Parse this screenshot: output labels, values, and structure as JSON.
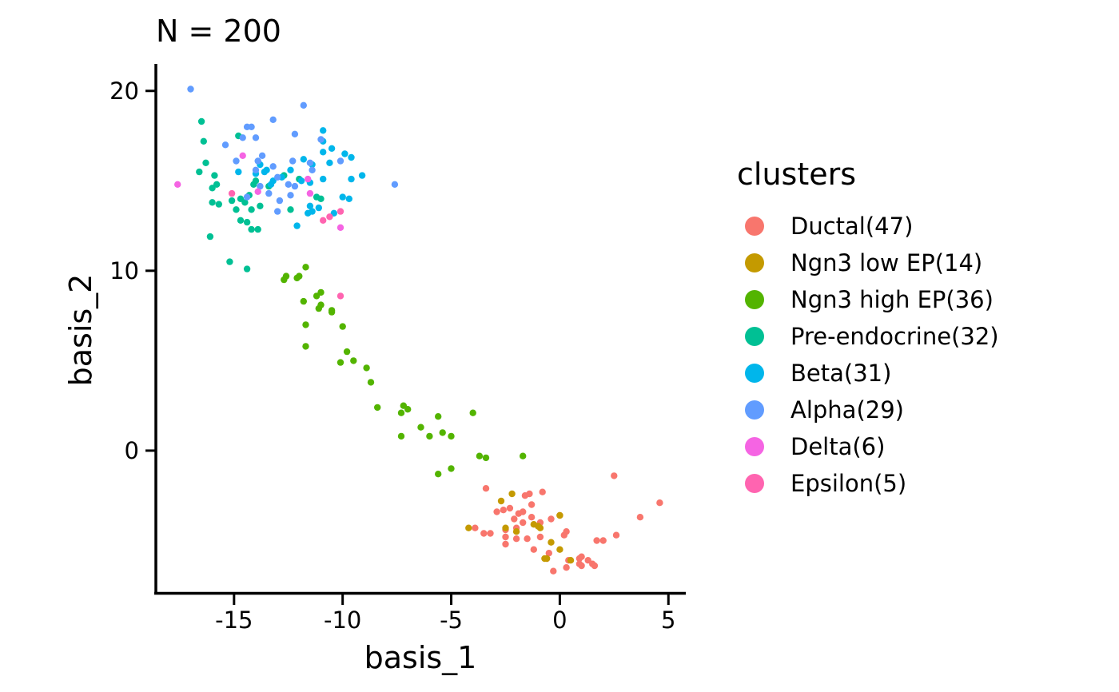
{
  "chart_data": {
    "type": "scatter",
    "title": "N = 200",
    "xlabel": "basis_1",
    "ylabel": "basis_2",
    "xlim": [
      -18.6,
      5.8
    ],
    "ylim": [
      -8.0,
      21.5
    ],
    "x_ticks": [
      -15,
      -10,
      -5,
      0,
      5
    ],
    "y_ticks": [
      0,
      10,
      20
    ],
    "x_tick_labels": [
      "-15",
      "-10",
      "-5",
      "0",
      "5"
    ],
    "y_tick_labels": [
      "0",
      "10",
      "20"
    ],
    "grid": false,
    "legend_position": "right",
    "legend_title": "clusters",
    "series": [
      {
        "name": "Ductal(47)",
        "color": "#F8766D",
        "points": [
          [
            -3.4,
            -2.1
          ],
          [
            -2.9,
            -3.4
          ],
          [
            -2.6,
            -3.3
          ],
          [
            -2.3,
            -3.2
          ],
          [
            -1.9,
            -3.5
          ],
          [
            -1.7,
            -3.4
          ],
          [
            -1.4,
            -2.4
          ],
          [
            -1.3,
            -3.0
          ],
          [
            -0.8,
            -2.3
          ],
          [
            -2.1,
            -3.8
          ],
          [
            -1.7,
            -4.0
          ],
          [
            -1.3,
            -3.7
          ],
          [
            -0.9,
            -4.0
          ],
          [
            -0.4,
            -3.8
          ],
          [
            0.0,
            -3.6
          ],
          [
            -3.5,
            -4.6
          ],
          [
            -3.2,
            -4.6
          ],
          [
            -2.5,
            -4.4
          ],
          [
            -2.5,
            -5.2
          ],
          [
            -2.5,
            -4.8
          ],
          [
            -2.0,
            -4.3
          ],
          [
            -2.0,
            -4.9
          ],
          [
            -1.5,
            -4.9
          ],
          [
            -1.2,
            -5.5
          ],
          [
            -0.9,
            -4.8
          ],
          [
            -0.5,
            -5.7
          ],
          [
            -0.6,
            -6.0
          ],
          [
            -0.3,
            -6.7
          ],
          [
            0.2,
            -4.7
          ],
          [
            0.3,
            -4.5
          ],
          [
            0.3,
            -6.5
          ],
          [
            0.4,
            -6.1
          ],
          [
            0.9,
            -6.3
          ],
          [
            1.0,
            -5.9
          ],
          [
            1.0,
            -6.4
          ],
          [
            1.3,
            -6.1
          ],
          [
            1.5,
            -6.3
          ],
          [
            1.6,
            -6.4
          ],
          [
            1.7,
            -5.0
          ],
          [
            2.0,
            -5.0
          ],
          [
            2.5,
            -1.4
          ],
          [
            2.6,
            -4.7
          ],
          [
            3.7,
            -3.7
          ],
          [
            4.6,
            -2.9
          ],
          [
            -3.9,
            -4.3
          ],
          [
            -1.6,
            -2.5
          ],
          [
            0.9,
            -6.0
          ]
        ]
      },
      {
        "name": "Ngn3 low EP(14)",
        "color": "#C49A00",
        "points": [
          [
            -4.2,
            -4.3
          ],
          [
            -2.7,
            -2.8
          ],
          [
            -2.2,
            -2.4
          ],
          [
            -2.5,
            -4.3
          ],
          [
            -2.0,
            -4.5
          ],
          [
            -1.2,
            -4.1
          ],
          [
            -0.9,
            -4.3
          ],
          [
            -0.7,
            -6.0
          ],
          [
            -0.4,
            -5.1
          ],
          [
            0.0,
            -5.5
          ],
          [
            0.0,
            -3.6
          ],
          [
            0.5,
            -6.1
          ],
          [
            -0.6,
            -6.0
          ],
          [
            -1.0,
            -4.2
          ]
        ]
      },
      {
        "name": "Ngn3 high EP(36)",
        "color": "#53B400",
        "points": [
          [
            -12.6,
            9.7
          ],
          [
            -12.7,
            9.5
          ],
          [
            -12.0,
            9.7
          ],
          [
            -11.7,
            10.2
          ],
          [
            -12.1,
            9.6
          ],
          [
            -11.2,
            8.6
          ],
          [
            -11.0,
            8.8
          ],
          [
            -11.8,
            8.3
          ],
          [
            -11.0,
            8.1
          ],
          [
            -11.1,
            7.9
          ],
          [
            -10.5,
            7.8
          ],
          [
            -10.5,
            7.7
          ],
          [
            -11.7,
            7.0
          ],
          [
            -11.7,
            5.8
          ],
          [
            -10.0,
            6.9
          ],
          [
            -9.8,
            5.5
          ],
          [
            -10.1,
            4.9
          ],
          [
            -9.5,
            5.0
          ],
          [
            -8.9,
            4.6
          ],
          [
            -8.7,
            3.8
          ],
          [
            -8.4,
            2.4
          ],
          [
            -7.3,
            2.1
          ],
          [
            -7.2,
            2.5
          ],
          [
            -7.0,
            2.3
          ],
          [
            -6.4,
            1.3
          ],
          [
            -6.0,
            0.8
          ],
          [
            -7.3,
            0.8
          ],
          [
            -5.6,
            1.9
          ],
          [
            -5.4,
            1.0
          ],
          [
            -5.0,
            0.8
          ],
          [
            -4.0,
            2.1
          ],
          [
            -3.7,
            -0.3
          ],
          [
            -3.4,
            -0.4
          ],
          [
            -5.6,
            -1.3
          ],
          [
            -5.0,
            -1.0
          ],
          [
            -1.7,
            -0.3
          ]
        ]
      },
      {
        "name": "Pre-endocrine(32)",
        "color": "#00C094",
        "points": [
          [
            -16.5,
            18.3
          ],
          [
            -16.4,
            17.2
          ],
          [
            -16.6,
            15.5
          ],
          [
            -16.3,
            16.0
          ],
          [
            -15.9,
            15.3
          ],
          [
            -15.8,
            14.8
          ],
          [
            -16.0,
            14.6
          ],
          [
            -15.7,
            13.7
          ],
          [
            -16.0,
            13.8
          ],
          [
            -14.8,
            17.5
          ],
          [
            -14.1,
            14.8
          ],
          [
            -14.7,
            14.0
          ],
          [
            -14.5,
            13.8
          ],
          [
            -14.9,
            13.4
          ],
          [
            -15.1,
            13.9
          ],
          [
            -14.7,
            12.8
          ],
          [
            -14.4,
            12.7
          ],
          [
            -14.2,
            12.3
          ],
          [
            -13.9,
            12.3
          ],
          [
            -14.2,
            13.4
          ],
          [
            -13.8,
            13.6
          ],
          [
            -13.4,
            14.7
          ],
          [
            -12.7,
            15.3
          ],
          [
            -12.4,
            13.4
          ],
          [
            -12.0,
            15.1
          ],
          [
            -11.2,
            14.1
          ],
          [
            -11.0,
            14.0
          ],
          [
            -16.1,
            11.9
          ],
          [
            -15.2,
            10.5
          ],
          [
            -14.4,
            10.1
          ],
          [
            -14.0,
            15.0
          ],
          [
            -14.3,
            14.2
          ]
        ]
      },
      {
        "name": "Beta(31)",
        "color": "#00B6EB",
        "points": [
          [
            -14.8,
            15.5
          ],
          [
            -14.0,
            15.4
          ],
          [
            -13.8,
            15.9
          ],
          [
            -13.5,
            15.6
          ],
          [
            -13.2,
            15.0
          ],
          [
            -13.3,
            14.8
          ],
          [
            -12.8,
            15.2
          ],
          [
            -12.4,
            15.6
          ],
          [
            -11.9,
            15.0
          ],
          [
            -11.8,
            16.2
          ],
          [
            -11.4,
            15.9
          ],
          [
            -11.5,
            14.9
          ],
          [
            -10.9,
            17.8
          ],
          [
            -10.9,
            17.2
          ],
          [
            -10.9,
            16.6
          ],
          [
            -10.9,
            15.1
          ],
          [
            -10.5,
            16.8
          ],
          [
            -10.6,
            16.0
          ],
          [
            -9.9,
            16.5
          ],
          [
            -9.6,
            16.3
          ],
          [
            -9.1,
            15.3
          ],
          [
            -9.6,
            15.1
          ],
          [
            -10.0,
            14.1
          ],
          [
            -9.7,
            14.0
          ],
          [
            -10.4,
            13.2
          ],
          [
            -11.5,
            13.6
          ],
          [
            -11.4,
            13.3
          ],
          [
            -12.1,
            12.5
          ],
          [
            -11.6,
            13.2
          ],
          [
            -11.1,
            13.5
          ],
          [
            -13.6,
            15.5
          ]
        ]
      },
      {
        "name": "Alpha(29)",
        "color": "#619CFF",
        "points": [
          [
            -17.0,
            20.1
          ],
          [
            -15.4,
            17.0
          ],
          [
            -14.6,
            17.4
          ],
          [
            -14.4,
            18.0
          ],
          [
            -14.2,
            18.0
          ],
          [
            -13.2,
            18.4
          ],
          [
            -12.2,
            17.6
          ],
          [
            -11.8,
            19.2
          ],
          [
            -14.0,
            17.4
          ],
          [
            -13.9,
            16.1
          ],
          [
            -13.7,
            16.4
          ],
          [
            -13.2,
            15.8
          ],
          [
            -12.3,
            16.1
          ],
          [
            -11.5,
            16.0
          ],
          [
            -11.4,
            15.6
          ],
          [
            -10.1,
            16.1
          ],
          [
            -14.9,
            16.1
          ],
          [
            -14.0,
            15.6
          ],
          [
            -13.0,
            15.2
          ],
          [
            -12.5,
            14.8
          ],
          [
            -12.2,
            14.7
          ],
          [
            -12.9,
            13.9
          ],
          [
            -12.4,
            14.2
          ],
          [
            -13.4,
            14.3
          ],
          [
            -13.0,
            13.3
          ],
          [
            -14.4,
            14.1
          ],
          [
            -7.6,
            14.8
          ],
          [
            -11.0,
            17.3
          ],
          [
            -13.8,
            14.7
          ]
        ]
      },
      {
        "name": "Delta(6)",
        "color": "#F564E3",
        "points": [
          [
            -17.6,
            14.8
          ],
          [
            -14.6,
            16.4
          ],
          [
            -13.9,
            14.4
          ],
          [
            -11.5,
            14.3
          ],
          [
            -10.1,
            12.4
          ],
          [
            -11.6,
            15.1
          ]
        ]
      },
      {
        "name": "Epsilon(5)",
        "color": "#FF64B0",
        "points": [
          [
            -15.1,
            14.3
          ],
          [
            -10.9,
            12.8
          ],
          [
            -10.1,
            13.3
          ],
          [
            -10.1,
            8.6
          ],
          [
            -10.6,
            13.0
          ]
        ]
      }
    ]
  }
}
